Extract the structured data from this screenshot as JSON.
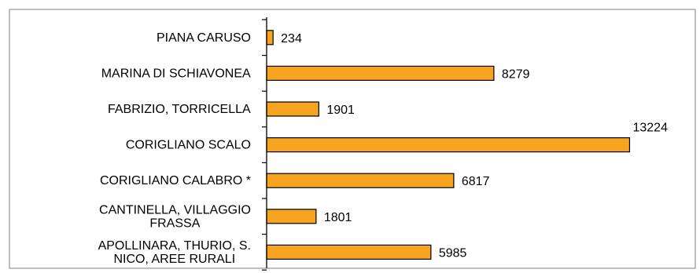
{
  "chart_data": {
    "type": "bar",
    "orientation": "horizontal",
    "categories": [
      [
        "PIANA CARUSO"
      ],
      [
        "MARINA DI SCHIAVONEA"
      ],
      [
        "FABRIZIO, TORRICELLA"
      ],
      [
        "CORIGLIANO SCALO"
      ],
      [
        "CORIGLIANO CALABRO *"
      ],
      [
        "CANTINELLA, VILLAGGIO",
        "FRASSA"
      ],
      [
        "APOLLINARA, THURIO, S.",
        "NICO, AREE RURALI"
      ]
    ],
    "values": [
      234,
      8279,
      1901,
      13224,
      6817,
      1801,
      5985
    ],
    "data_labels": [
      "234",
      "8279",
      "1901",
      "13224",
      "6817",
      "1801",
      "5985"
    ],
    "title": "",
    "xlabel": "",
    "ylabel": "",
    "xlim": [
      0,
      14500
    ],
    "grid": false,
    "legend": "none",
    "bar_color": "#f7a420",
    "bar_border_color": "#000000"
  }
}
